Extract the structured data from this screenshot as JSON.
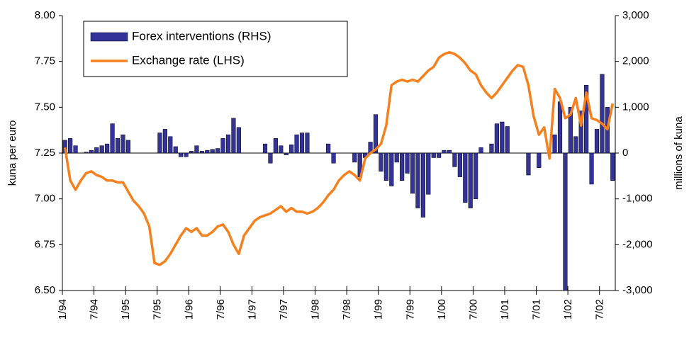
{
  "chart_data": {
    "type": "combo",
    "y_label": "kuna per euro",
    "y2_label": "millions of kuna",
    "categories": [
      "1/94",
      null,
      null,
      null,
      null,
      null,
      "7/94",
      null,
      null,
      null,
      null,
      null,
      "1/95",
      null,
      null,
      null,
      null,
      null,
      "7/95",
      null,
      null,
      null,
      null,
      null,
      "1/96",
      null,
      null,
      null,
      null,
      null,
      "7/96",
      null,
      null,
      null,
      null,
      null,
      "1/97",
      null,
      null,
      null,
      null,
      null,
      "7/97",
      null,
      null,
      null,
      null,
      null,
      "1/98",
      null,
      null,
      null,
      null,
      null,
      "7/98",
      null,
      null,
      null,
      null,
      null,
      "1/99",
      null,
      null,
      null,
      null,
      null,
      "7/99",
      null,
      null,
      null,
      null,
      null,
      "1/00",
      null,
      null,
      null,
      null,
      null,
      "7/00",
      null,
      null,
      null,
      null,
      null,
      "1/01",
      null,
      null,
      null,
      null,
      null,
      "7/01",
      null,
      null,
      null,
      null,
      null,
      "1/02",
      null,
      null,
      null,
      null,
      null,
      "7/02",
      null,
      null
    ],
    "series": [
      {
        "name": "Forex interventions (RHS)",
        "type": "bar",
        "axis": "y2",
        "color": "#333399",
        "values": [
          280,
          320,
          160,
          0,
          20,
          60,
          120,
          160,
          200,
          640,
          320,
          400,
          280,
          0,
          0,
          0,
          0,
          0,
          440,
          520,
          360,
          140,
          -80,
          -80,
          40,
          160,
          40,
          60,
          80,
          100,
          320,
          400,
          760,
          560,
          0,
          0,
          0,
          0,
          200,
          -220,
          320,
          160,
          -40,
          180,
          400,
          440,
          440,
          0,
          0,
          0,
          200,
          -220,
          0,
          0,
          0,
          -200,
          -520,
          -100,
          240,
          840,
          -400,
          -600,
          -720,
          -200,
          -600,
          -440,
          -880,
          -1200,
          -1400,
          -900,
          -100,
          -100,
          60,
          60,
          -300,
          -520,
          -1080,
          -1200,
          -1000,
          120,
          0,
          200,
          640,
          680,
          580,
          0,
          0,
          0,
          -480,
          0,
          -320,
          0,
          0,
          400,
          1120,
          -3150,
          1000,
          360,
          920,
          1480,
          -680,
          520,
          1720,
          1000,
          -600
        ]
      },
      {
        "name": "Exchange rate (LHS)",
        "type": "line",
        "axis": "y",
        "color": "#f7801e",
        "values": [
          7.28,
          7.1,
          7.05,
          7.1,
          7.14,
          7.15,
          7.13,
          7.12,
          7.1,
          7.1,
          7.09,
          7.09,
          7.04,
          6.99,
          6.96,
          6.92,
          6.85,
          6.65,
          6.64,
          6.66,
          6.7,
          6.75,
          6.8,
          6.84,
          6.82,
          6.84,
          6.8,
          6.8,
          6.82,
          6.85,
          6.86,
          6.82,
          6.75,
          6.7,
          6.8,
          6.84,
          6.88,
          6.9,
          6.91,
          6.92,
          6.94,
          6.96,
          6.93,
          6.95,
          6.93,
          6.93,
          6.92,
          6.93,
          6.95,
          6.98,
          7.02,
          7.05,
          7.1,
          7.13,
          7.15,
          7.13,
          7.1,
          7.22,
          7.25,
          7.27,
          7.3,
          7.4,
          7.62,
          7.64,
          7.65,
          7.64,
          7.65,
          7.64,
          7.67,
          7.7,
          7.72,
          7.77,
          7.79,
          7.8,
          7.79,
          7.77,
          7.74,
          7.7,
          7.68,
          7.62,
          7.58,
          7.55,
          7.58,
          7.62,
          7.66,
          7.7,
          7.73,
          7.72,
          7.62,
          7.45,
          7.35,
          7.39,
          7.22,
          7.6,
          7.55,
          7.44,
          7.46,
          7.55,
          7.4,
          7.58,
          7.44,
          7.43,
          7.41,
          7.38,
          7.52
        ]
      }
    ],
    "ylim": [
      6.5,
      8
    ],
    "yticks": [
      {
        "value": 6.5,
        "label": "6.50"
      },
      {
        "value": 6.75,
        "label": "6.75"
      },
      {
        "value": 7,
        "label": "7.00"
      },
      {
        "value": 7.25,
        "label": "7.25"
      },
      {
        "value": 7.5,
        "label": "7.50"
      },
      {
        "value": 7.75,
        "label": "7.75"
      },
      {
        "value": 8,
        "label": "8.00"
      }
    ],
    "y2lim": [
      -3000,
      3000
    ],
    "y2ticks": [
      {
        "value": -3000,
        "label": "-3,000"
      },
      {
        "value": -2000,
        "label": "-2,000"
      },
      {
        "value": -1000,
        "label": "-1,000"
      },
      0,
      {
        "value": 1000,
        "label": "1,000"
      },
      {
        "value": 2000,
        "label": "2,000"
      },
      {
        "value": 3000,
        "label": "3,000"
      }
    ],
    "legend": "upper left"
  }
}
